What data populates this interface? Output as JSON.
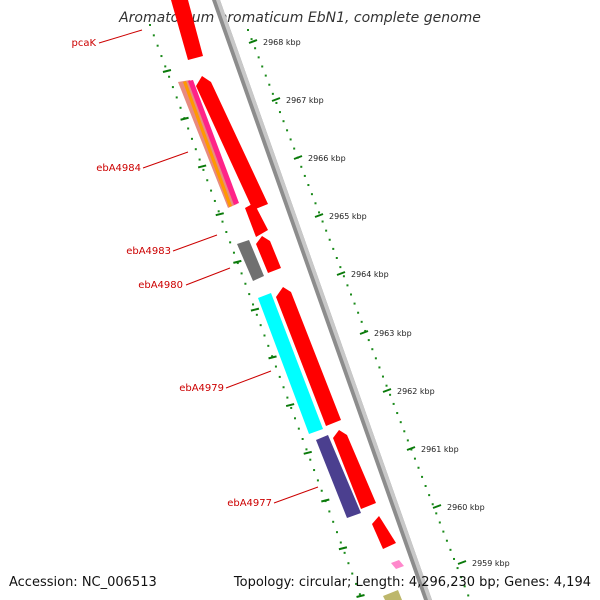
{
  "title": "Aromatoleum aromaticum EbN1, complete genome",
  "footer": {
    "accession": "Accession: NC_006513",
    "summary": "Topology: circular; Length: 4,296,230 bp; Genes: 4,194"
  },
  "kbp_ticks": [
    "2968 kbp",
    "2967 kbp",
    "2966 kbp",
    "2965 kbp",
    "2964 kbp",
    "2963 kbp",
    "2962 kbp",
    "2961 kbp",
    "2960 kbp",
    "2959 kbp"
  ],
  "gene_labels": [
    "pcaK",
    "ebA4984",
    "ebA4983",
    "ebA4980",
    "ebA4979",
    "ebA4977"
  ],
  "colors": {
    "forward_gene": "#ff0000",
    "reverse_gene_red": "#ff0000",
    "ebA4983": "#707070",
    "ebA4979": "#00ffff",
    "ebA4977": "#4b3f8f",
    "label": "#cc0000",
    "tick": "#008000",
    "backbone": "#888888"
  }
}
